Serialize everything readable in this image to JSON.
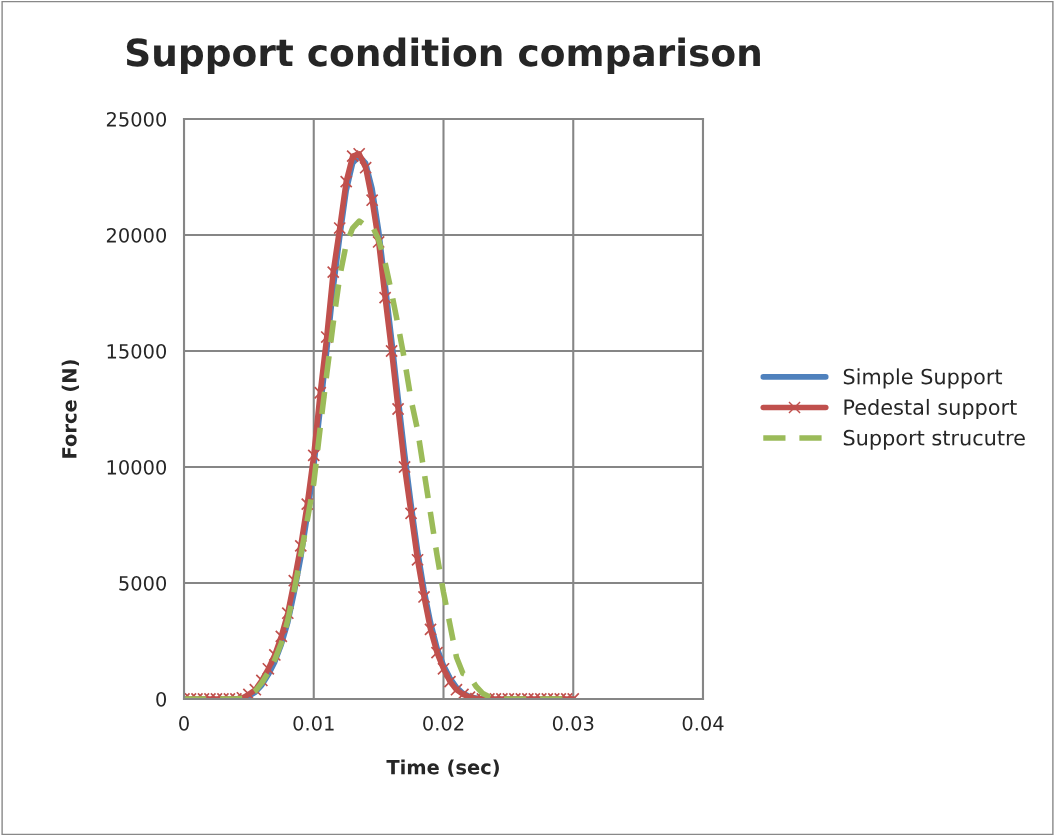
{
  "chart_data": {
    "type": "line",
    "title": "Support condition comparison",
    "xlabel": "Time (sec)",
    "ylabel": "Force (N)",
    "x": [
      0,
      0.0005,
      0.001,
      0.0015,
      0.002,
      0.0025,
      0.003,
      0.0035,
      0.004,
      0.0045,
      0.005,
      0.0055,
      0.006,
      0.0065,
      0.007,
      0.0075,
      0.008,
      0.0085,
      0.009,
      0.0095,
      0.01,
      0.0105,
      0.011,
      0.0115,
      0.012,
      0.0125,
      0.013,
      0.0135,
      0.014,
      0.0145,
      0.015,
      0.0155,
      0.016,
      0.0165,
      0.017,
      0.0175,
      0.018,
      0.0185,
      0.019,
      0.0195,
      0.02,
      0.0205,
      0.021,
      0.0215,
      0.022,
      0.0225,
      0.023,
      0.0235,
      0.024,
      0.0245,
      0.025,
      0.0255,
      0.026,
      0.0265,
      0.027,
      0.0275,
      0.028,
      0.0285,
      0.029,
      0.0295,
      0.03
    ],
    "series": [
      {
        "name": "Simple Support",
        "color": "#4f81bd",
        "marker": "none",
        "line_style": "solid",
        "values": [
          null,
          null,
          null,
          null,
          null,
          null,
          null,
          null,
          0,
          0,
          120,
          300,
          600,
          1050,
          1600,
          2350,
          3300,
          4600,
          6100,
          7900,
          10000,
          12500,
          15000,
          17700,
          19900,
          21900,
          23100,
          23400,
          23100,
          22000,
          20200,
          17900,
          15500,
          13000,
          10600,
          8400,
          6400,
          4700,
          3300,
          2200,
          1450,
          900,
          500,
          250,
          110,
          40,
          0,
          0,
          null,
          null,
          null,
          null,
          null,
          null,
          null,
          null,
          null,
          null,
          null,
          null,
          null
        ]
      },
      {
        "name": "Pedestal support",
        "color": "#c0504d",
        "marker": "cross",
        "line_style": "solid",
        "values": [
          0,
          0,
          0,
          0,
          0,
          0,
          0,
          0,
          0,
          50,
          200,
          400,
          800,
          1300,
          1900,
          2700,
          3700,
          5100,
          6600,
          8400,
          10500,
          13200,
          15600,
          18400,
          20300,
          22300,
          23400,
          23500,
          22900,
          21500,
          19700,
          17300,
          15000,
          12500,
          10000,
          8000,
          6000,
          4400,
          3000,
          2000,
          1300,
          750,
          400,
          200,
          80,
          20,
          0,
          0,
          0,
          0,
          0,
          0,
          0,
          0,
          0,
          0,
          0,
          0,
          0,
          0,
          0
        ]
      },
      {
        "name": "Support strucutre",
        "color": "#9bbb59",
        "marker": "none",
        "line_style": "dashed",
        "values": [
          0,
          0,
          0,
          0,
          0,
          0,
          0,
          0,
          0,
          30,
          150,
          350,
          700,
          1150,
          1700,
          2400,
          3400,
          4700,
          6200,
          7700,
          9300,
          11700,
          14000,
          16200,
          18200,
          19600,
          20300,
          20600,
          20400,
          20400,
          19800,
          18800,
          17500,
          16100,
          14600,
          12900,
          11600,
          9800,
          8000,
          6200,
          4600,
          3200,
          1800,
          1100,
          1000,
          550,
          250,
          100,
          30,
          0,
          0,
          0,
          0,
          0,
          0,
          0,
          0,
          0,
          0,
          0,
          0
        ]
      }
    ],
    "xlim": [
      0,
      0.04
    ],
    "xticks": [
      0,
      0.01,
      0.02,
      0.03,
      0.04
    ],
    "ylim": [
      0,
      25000
    ],
    "yticks": [
      0,
      5000,
      10000,
      15000,
      20000,
      25000
    ],
    "grid": true,
    "legend": "right"
  }
}
